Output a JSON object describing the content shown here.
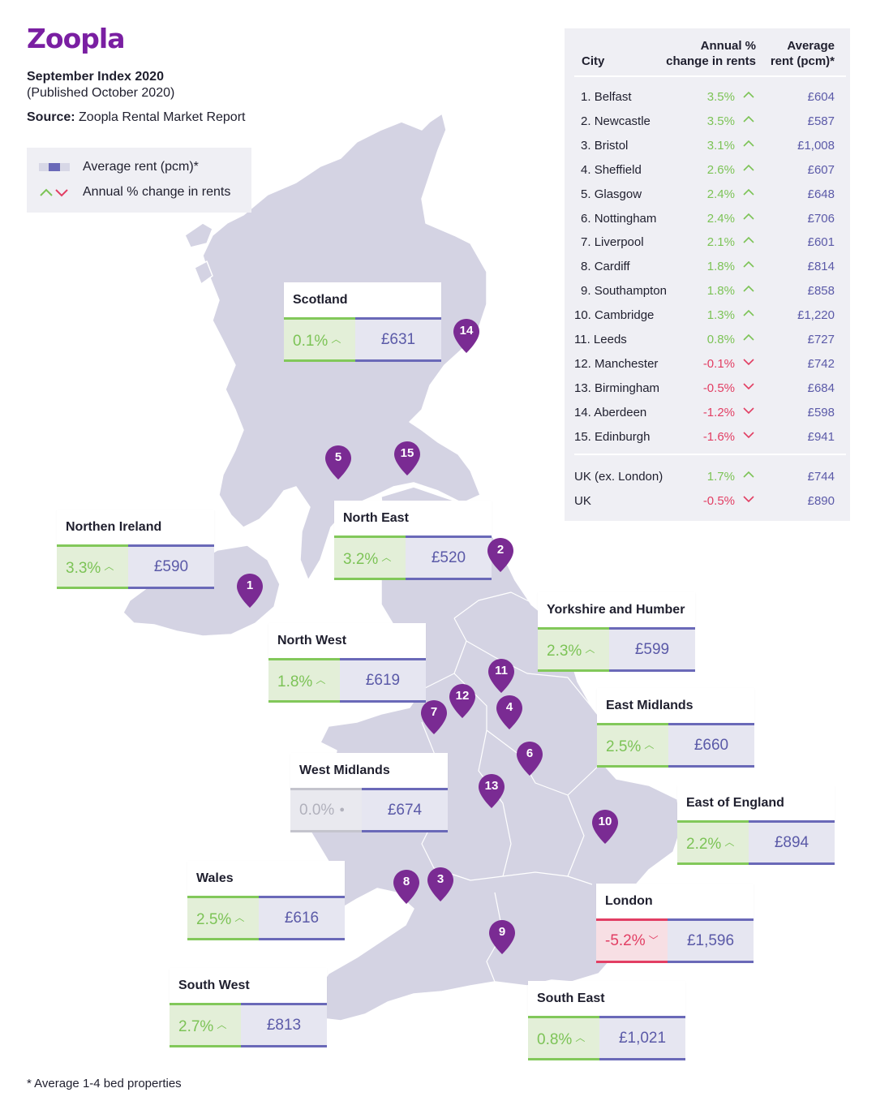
{
  "brand": {
    "logo": "Zoopla"
  },
  "header": {
    "title": "September Index 2020",
    "subtitle": "(Published October 2020)",
    "source_label": "Source:",
    "source_text": "Zoopla Rental Market Report"
  },
  "legend": {
    "rent": "Average rent (pcm)*",
    "change": "Annual % change in rents"
  },
  "footnote": "* Average 1-4 bed properties",
  "colors": {
    "positive": "#7cc356",
    "negative": "#e23e63",
    "rent": "#5b5aa8",
    "pin": "#7a2b93",
    "land": "#d4d3e3"
  },
  "regions": [
    {
      "name": "Scotland",
      "change": "0.1%",
      "rent": "£631",
      "trend": "pos"
    },
    {
      "name": "Northen Ireland",
      "change": "3.3%",
      "rent": "£590",
      "trend": "pos"
    },
    {
      "name": "North East",
      "change": "3.2%",
      "rent": "£520",
      "trend": "pos"
    },
    {
      "name": "Yorkshire and Humber",
      "change": "2.3%",
      "rent": "£599",
      "trend": "pos"
    },
    {
      "name": "North West",
      "change": "1.8%",
      "rent": "£619",
      "trend": "pos"
    },
    {
      "name": "East Midlands",
      "change": "2.5%",
      "rent": "£660",
      "trend": "pos"
    },
    {
      "name": "West Midlands",
      "change": "0.0%",
      "rent": "£674",
      "trend": "zero"
    },
    {
      "name": "East of England",
      "change": "2.2%",
      "rent": "£894",
      "trend": "pos"
    },
    {
      "name": "Wales",
      "change": "2.5%",
      "rent": "£616",
      "trend": "pos"
    },
    {
      "name": "London",
      "change": "-5.2%",
      "rent": "£1,596",
      "trend": "neg"
    },
    {
      "name": "South West",
      "change": "2.7%",
      "rent": "£813",
      "trend": "pos"
    },
    {
      "name": "South East",
      "change": "0.8%",
      "rent": "£1,021",
      "trend": "pos"
    }
  ],
  "pins": [
    "1",
    "2",
    "3",
    "4",
    "5",
    "6",
    "7",
    "8",
    "9",
    "10",
    "11",
    "12",
    "13",
    "14",
    "15"
  ],
  "table": {
    "headers": {
      "city": "City",
      "change_l1": "Annual %",
      "change_l2": "change in rents",
      "rent_l1": "Average",
      "rent_l2": "rent (pcm)*"
    },
    "rows": [
      {
        "rank": "1.",
        "city": "Belfast",
        "change": "3.5%",
        "rent": "£604",
        "trend": "pos"
      },
      {
        "rank": "2.",
        "city": "Newcastle",
        "change": "3.5%",
        "rent": "£587",
        "trend": "pos"
      },
      {
        "rank": "3.",
        "city": "Bristol",
        "change": "3.1%",
        "rent": "£1,008",
        "trend": "pos"
      },
      {
        "rank": "4.",
        "city": "Sheffield",
        "change": "2.6%",
        "rent": "£607",
        "trend": "pos"
      },
      {
        "rank": "5.",
        "city": "Glasgow",
        "change": "2.4%",
        "rent": "£648",
        "trend": "pos"
      },
      {
        "rank": "6.",
        "city": "Nottingham",
        "change": "2.4%",
        "rent": "£706",
        "trend": "pos"
      },
      {
        "rank": "7.",
        "city": "Liverpool",
        "change": "2.1%",
        "rent": "£601",
        "trend": "pos"
      },
      {
        "rank": "8.",
        "city": "Cardiff",
        "change": "1.8%",
        "rent": "£814",
        "trend": "pos"
      },
      {
        "rank": "9.",
        "city": "Southampton",
        "change": "1.8%",
        "rent": "£858",
        "trend": "pos"
      },
      {
        "rank": "10.",
        "city": "Cambridge",
        "change": "1.3%",
        "rent": "£1,220",
        "trend": "pos"
      },
      {
        "rank": "11.",
        "city": "Leeds",
        "change": "0.8%",
        "rent": "£727",
        "trend": "pos"
      },
      {
        "rank": "12.",
        "city": "Manchester",
        "change": "-0.1%",
        "rent": "£742",
        "trend": "neg"
      },
      {
        "rank": "13.",
        "city": "Birmingham",
        "change": "-0.5%",
        "rent": "£684",
        "trend": "neg"
      },
      {
        "rank": "14.",
        "city": "Aberdeen",
        "change": "-1.2%",
        "rent": "£598",
        "trend": "neg"
      },
      {
        "rank": "15.",
        "city": "Edinburgh",
        "change": "-1.6%",
        "rent": "£941",
        "trend": "neg"
      }
    ],
    "totals": [
      {
        "city": "UK (ex. London)",
        "change": "1.7%",
        "rent": "£744",
        "trend": "pos"
      },
      {
        "city": "UK",
        "change": "-0.5%",
        "rent": "£890",
        "trend": "neg"
      }
    ]
  }
}
